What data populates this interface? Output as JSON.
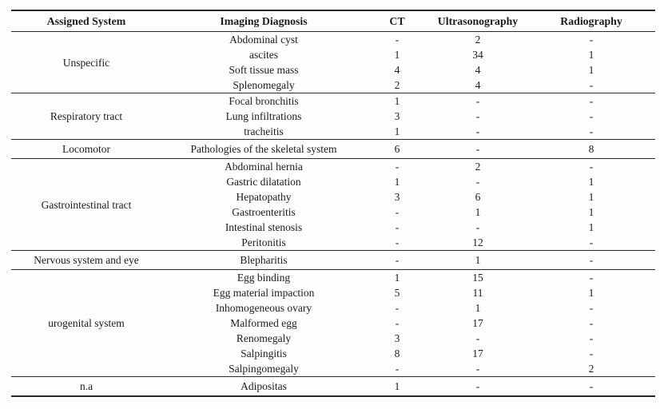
{
  "table": {
    "headers": {
      "assigned_system": "Assigned System",
      "imaging_diagnosis": "Imaging Diagnosis",
      "ct": "CT",
      "ultrasonography": "Ultrasonography",
      "radiography": "Radiography"
    },
    "sections": [
      {
        "system": "Unspecific",
        "rows": [
          {
            "diagnosis": "Abdominal cyst",
            "ct": "-",
            "ultrasonography": "2",
            "radiography": "-"
          },
          {
            "diagnosis": "ascites",
            "ct": "1",
            "ultrasonography": "34",
            "radiography": "1"
          },
          {
            "diagnosis": "Soft tissue mass",
            "ct": "4",
            "ultrasonography": "4",
            "radiography": "1"
          },
          {
            "diagnosis": "Splenomegaly",
            "ct": "2",
            "ultrasonography": "4",
            "radiography": "-"
          }
        ]
      },
      {
        "system": "Respiratory tract",
        "rows": [
          {
            "diagnosis": "Focal bronchitis",
            "ct": "1",
            "ultrasonography": "-",
            "radiography": "-"
          },
          {
            "diagnosis": "Lung infiltrations",
            "ct": "3",
            "ultrasonography": "-",
            "radiography": "-"
          },
          {
            "diagnosis": "tracheitis",
            "ct": "1",
            "ultrasonography": "-",
            "radiography": "-"
          }
        ]
      },
      {
        "system": "Locomotor",
        "rows": [
          {
            "diagnosis": "Pathologies of the skeletal system",
            "ct": "6",
            "ultrasonography": "-",
            "radiography": "8"
          }
        ]
      },
      {
        "system": "Gastrointestinal tract",
        "rows": [
          {
            "diagnosis": "Abdominal hernia",
            "ct": "-",
            "ultrasonography": "2",
            "radiography": "-"
          },
          {
            "diagnosis": "Gastric dilatation",
            "ct": "1",
            "ultrasonography": "-",
            "radiography": "1"
          },
          {
            "diagnosis": "Hepatopathy",
            "ct": "3",
            "ultrasonography": "6",
            "radiography": "1"
          },
          {
            "diagnosis": "Gastroenteritis",
            "ct": "-",
            "ultrasonography": "1",
            "radiography": "1"
          },
          {
            "diagnosis": "Intestinal stenosis",
            "ct": "-",
            "ultrasonography": "-",
            "radiography": "1"
          },
          {
            "diagnosis": "Peritonitis",
            "ct": "-",
            "ultrasonography": "12",
            "radiography": "-"
          }
        ]
      },
      {
        "system": "Nervous system and eye",
        "rows": [
          {
            "diagnosis": "Blepharitis",
            "ct": "-",
            "ultrasonography": "1",
            "radiography": "-"
          }
        ]
      },
      {
        "system": "urogenital system",
        "rows": [
          {
            "diagnosis": "Egg binding",
            "ct": "1",
            "ultrasonography": "15",
            "radiography": "-"
          },
          {
            "diagnosis": "Egg material impaction",
            "ct": "5",
            "ultrasonography": "11",
            "radiography": "1"
          },
          {
            "diagnosis": "Inhomogeneous ovary",
            "ct": "-",
            "ultrasonography": "1",
            "radiography": "-"
          },
          {
            "diagnosis": "Malformed egg",
            "ct": "-",
            "ultrasonography": "17",
            "radiography": "-"
          },
          {
            "diagnosis": "Renomegaly",
            "ct": "3",
            "ultrasonography": "-",
            "radiography": "-"
          },
          {
            "diagnosis": "Salpingitis",
            "ct": "8",
            "ultrasonography": "17",
            "radiography": "-"
          },
          {
            "diagnosis": "Salpingomegaly",
            "ct": "-",
            "ultrasonography": "-",
            "radiography": "2"
          }
        ]
      },
      {
        "system": "n.a",
        "rows": [
          {
            "diagnosis": "Adipositas",
            "ct": "1",
            "ultrasonography": "-",
            "radiography": "-"
          }
        ]
      }
    ]
  },
  "colors": {
    "text": "#1c1c1c",
    "rule": "#262626",
    "background": "#fdfdfc"
  }
}
